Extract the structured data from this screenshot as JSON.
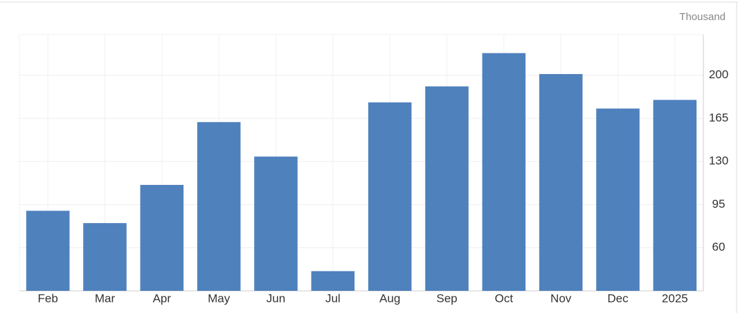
{
  "chart_data": {
    "type": "bar",
    "unit_label": "Thousand",
    "categories": [
      "Feb",
      "Mar",
      "Apr",
      "May",
      "Jun",
      "Jul",
      "Aug",
      "Sep",
      "Oct",
      "Nov",
      "Dec",
      "2025"
    ],
    "values": [
      90,
      80,
      111,
      162,
      134,
      41,
      178,
      191,
      218,
      201,
      173,
      180
    ],
    "color": "#4f81bd",
    "ylim": [
      25,
      233
    ],
    "yticks": [
      60,
      95,
      130,
      165,
      200
    ],
    "grid": true
  }
}
